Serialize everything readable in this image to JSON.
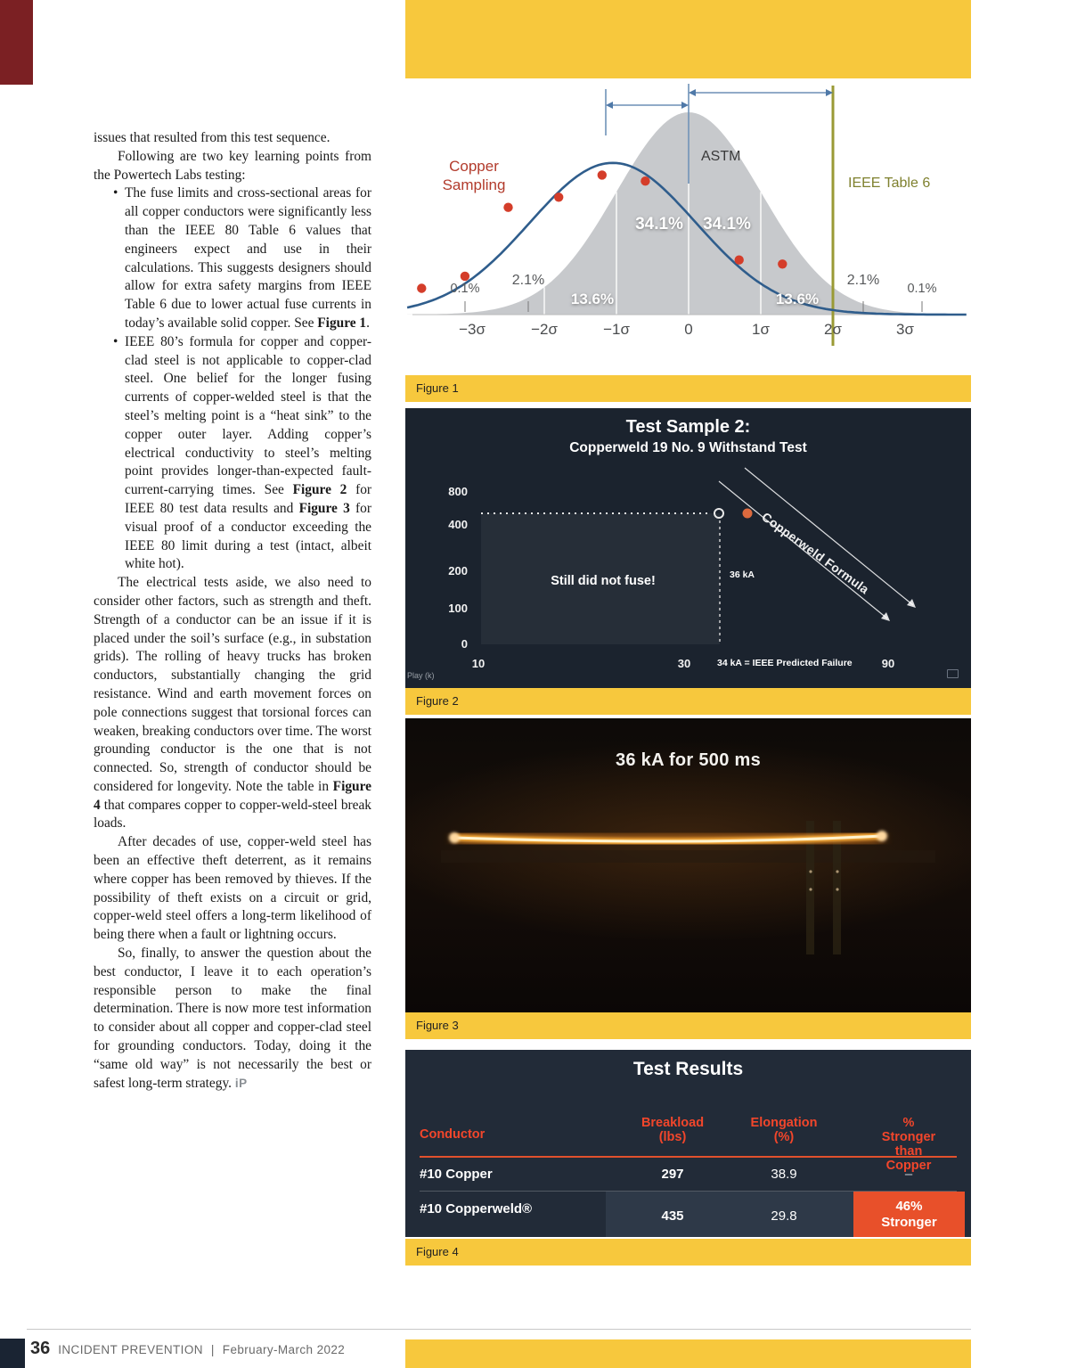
{
  "page": {
    "footer": {
      "page_number": "36",
      "publication": "INCIDENT PREVENTION",
      "separator": "|",
      "issue": "February-March 2022"
    },
    "colors": {
      "accent_yellow": "#f7c83d",
      "figure_navy": "#1b232e",
      "accent_orange": "#e8502a",
      "table_header_red": "#f2462b",
      "corner_maroon": "#7b2023"
    }
  },
  "article": {
    "blocks": [
      {
        "type": "p",
        "indent": false,
        "runs": [
          {
            "t": "issues that resulted from this test sequence."
          }
        ]
      },
      {
        "type": "p",
        "indent": true,
        "runs": [
          {
            "t": "Following are two key learning points from the Powertech Labs testing:"
          }
        ]
      },
      {
        "type": "bullet",
        "runs": [
          {
            "t": "The fuse limits and cross-sectional areas for all copper conductors were significantly less than the IEEE 80 Table 6 values that engineers expect and use in their calculations. This suggests designers should allow for extra safety margins from IEEE Table 6 due to lower actual fuse currents in today’s available solid copper. See "
          },
          {
            "t": "Figure 1",
            "b": true
          },
          {
            "t": "."
          }
        ]
      },
      {
        "type": "bullet",
        "runs": [
          {
            "t": "IEEE 80’s formula for copper and copper-clad steel is not applicable to copper-clad steel. One belief for the longer fusing currents of copper-welded steel is that the steel’s melting point is a “heat sink” to the copper outer layer. Adding copper’s electrical conductivity to steel’s melting point provides longer-than-expected fault-current-carrying times. See "
          },
          {
            "t": "Figure 2",
            "b": true
          },
          {
            "t": " for IEEE 80 test data results and "
          },
          {
            "t": "Figure 3",
            "b": true
          },
          {
            "t": " for visual proof of a conductor exceeding the IEEE 80 limit during a test (intact, albeit white hot)."
          }
        ]
      },
      {
        "type": "p",
        "indent": true,
        "runs": [
          {
            "t": "The electrical tests aside, we also need to consider other factors, such as strength and theft. Strength of a conductor can be an issue if it is placed under the soil’s surface (e.g., in substation grids). The rolling of heavy trucks has broken conductors, substantially changing the grid resistance. Wind and earth movement forces on pole connections suggest that torsional forces can weaken, breaking conductors over time. The worst grounding conductor is the one that is not connected. So, strength of conductor should be considered for longevity. Note the table in "
          },
          {
            "t": "Figure 4",
            "b": true
          },
          {
            "t": " that compares copper to copper-weld-steel break loads."
          }
        ]
      },
      {
        "type": "p",
        "indent": true,
        "runs": [
          {
            "t": "After decades of use, copper-weld steel has been an effective theft deterrent, as it remains where copper has been removed by thieves. If the possibility of theft exists on a circuit or grid, copper-weld steel offers a long-term likelihood of being there when a fault or lightning occurs."
          }
        ]
      },
      {
        "type": "p",
        "indent": true,
        "runs": [
          {
            "t": "So, finally, to answer the question about the best conductor, I leave it to each operation’s responsible person to make the final determination. There is now more test information to consider about all copper and copper-clad steel for grounding conductors. Today, doing it the “same old way” is not necessarily the best or safest long-term strategy. "
          },
          {
            "t": "iP",
            "mark": true
          }
        ]
      }
    ]
  },
  "figures": {
    "fig1": {
      "caption": "Figure 1",
      "chart_data": {
        "type": "area+scatter",
        "series_labels": {
          "copper": "Copper Sampling",
          "astm": "ASTM",
          "reference": "IEEE Table 6"
        },
        "x_ticks": [
          "−3σ",
          "−2σ",
          "−1σ",
          "0",
          "1σ",
          "2σ",
          "3σ"
        ],
        "region_labels": [
          "0.1%",
          "2.1%",
          "13.6%",
          "34.1%",
          "34.1%",
          "13.6%",
          "2.1%",
          "0.1%"
        ],
        "curves": {
          "astm": {
            "center_sigma": 0,
            "sigma": 1,
            "peak": 1
          },
          "copper": {
            "center_sigma": -1.05,
            "sigma": 1.15,
            "peak": 0.75
          }
        },
        "reference_sigma": 2,
        "scatter": [
          {
            "sigma": -3.7,
            "h": 0.13
          },
          {
            "sigma": -3.1,
            "h": 0.19
          },
          {
            "sigma": -2.5,
            "h": 0.53
          },
          {
            "sigma": -1.8,
            "h": 0.58
          },
          {
            "sigma": -1.2,
            "h": 0.69
          },
          {
            "sigma": -0.6,
            "h": 0.66
          },
          {
            "sigma": 0.7,
            "h": 0.27
          },
          {
            "sigma": 1.3,
            "h": 0.25
          }
        ]
      }
    },
    "fig2": {
      "caption": "Figure 2",
      "title": "Test Sample 2:",
      "subtitle": "Copperweld 19 No. 9 Withstand Test",
      "chart_data": {
        "type": "line",
        "y_ticks": [
          "800",
          "400",
          "200",
          "100",
          "0"
        ],
        "x_ticks": [
          "10",
          "30",
          "90"
        ],
        "note_box": "Still did not fuse!",
        "current_label": "36 kA",
        "formula_label": "Copperweld Formula",
        "axis_note": "34 kA = IEEE Predicted Failure"
      },
      "player_label": "Play (k)"
    },
    "fig3": {
      "caption": "Figure 3",
      "overlay_text": "36 kA for 500 ms"
    },
    "fig4": {
      "caption": "Figure 4",
      "title": "Test Results",
      "table": {
        "headers": [
          "Conductor",
          "Breakload\n(lbs)",
          "Elongation\n(%)",
          "% Stronger\nthan Copper"
        ],
        "rows": [
          {
            "conductor": "#10 Copper",
            "breakload": "297",
            "elongation": "38.9",
            "stronger": "–"
          },
          {
            "conductor": "#10 Copperweld®",
            "breakload": "435",
            "elongation": "29.8",
            "stronger": "46%\nStronger"
          }
        ]
      }
    }
  }
}
